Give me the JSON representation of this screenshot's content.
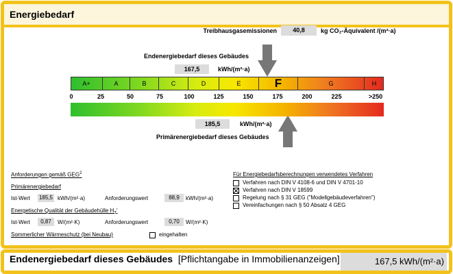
{
  "header": {
    "title": "Energiebedarf"
  },
  "ghg": {
    "label": "Treibhausgasemissionen",
    "value": "40,8",
    "unit": "kg CO₂-Äquivalent /(m²·a)"
  },
  "final_energy": {
    "label": "Endenergiebedarf dieses Gebäudes",
    "value": "167,5",
    "unit": "kWh/(m²·a)"
  },
  "classes": [
    "A+",
    "A",
    "B",
    "C",
    "D",
    "E",
    "F",
    "G",
    "H"
  ],
  "scale": [
    "0",
    "25",
    "50",
    "75",
    "100",
    "125",
    "150",
    "175",
    "200",
    "225",
    ">250"
  ],
  "primary_energy": {
    "label": "Primärenergiebedarf dieses Gebäudes",
    "value": "185,5",
    "unit": "kWh/(m²·a)"
  },
  "requirements": {
    "heading": "Anforderungen gemäß GEG",
    "heading_sup": "2",
    "primary": {
      "label": "Primärenergiebedarf",
      "ist_label": "Ist-Wert",
      "ist_value": "185,5",
      "ist_unit": "kWh/(m²·a)",
      "req_label": "Anforderungswert",
      "req_value": "88,9",
      "req_unit": "kWh/(m²·a)"
    },
    "hull": {
      "label": "Energetische Qualität der Gebäudehülle H",
      "label_sub": "T",
      "label_suffix": "'",
      "ist_label": "Ist-Wert",
      "ist_value": "0,87",
      "ist_unit": "W/(m²·K)",
      "req_label": "Anforderungswert",
      "req_value": "0,70",
      "req_unit": "W/(m²·K)"
    },
    "summer": {
      "label": "Sommerlicher Wärmeschutz (bei Neubau)",
      "option": "eingehalten"
    }
  },
  "methods": {
    "heading": "Für Energiebedarfsberechnungen verwendetes Verfahren",
    "options": [
      {
        "label": "Verfahren nach DIN V 4108-6 und DIN V 4701-10",
        "checked": false
      },
      {
        "label": "Verfahren nach DIN V 18599",
        "checked": true
      },
      {
        "label": "Regelung nach § 31 GEG (\"Modellgebäudeverfahren\")",
        "checked": false
      },
      {
        "label": "Vereinfachungen nach § 50 Absatz 4 GEG",
        "checked": false
      }
    ]
  },
  "footer": {
    "label": "Endenergiebedarf dieses Gebäudes",
    "note": "[Pflichtangabe in Immobilienanzeigen]",
    "value": "167,5 kWh/(m²·a)"
  }
}
